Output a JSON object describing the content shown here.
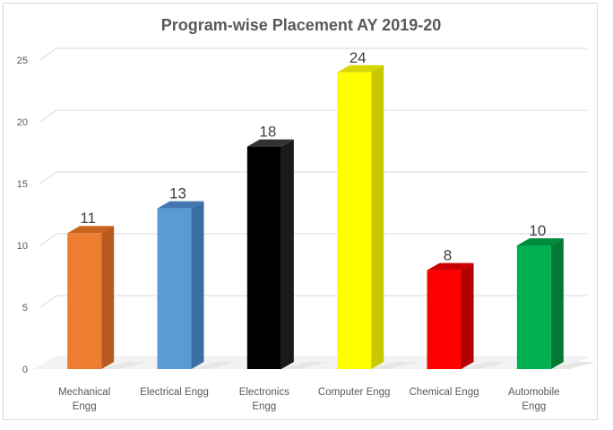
{
  "chart_data": {
    "type": "bar",
    "title": "Program-wise Placement AY 2019-20",
    "categories": [
      [
        "Mechanical",
        "Engg"
      ],
      [
        "Electrical Engg"
      ],
      [
        "Electronics",
        "Engg"
      ],
      [
        "Computer Engg"
      ],
      [
        "Chemical Engg"
      ],
      [
        "Automobile",
        "Engg"
      ]
    ],
    "values": [
      11,
      13,
      18,
      24,
      8,
      10
    ],
    "colors": [
      "#ed7d31",
      "#5b9bd5",
      "#000000",
      "#ffff00",
      "#ff0000",
      "#00b050"
    ],
    "side_colors": [
      "#b85a1e",
      "#3a6fa3",
      "#1a1a1a",
      "#c8c800",
      "#b30000",
      "#007a35"
    ],
    "top_colors": [
      "#c86420",
      "#4477b0",
      "#333333",
      "#d6d600",
      "#cc0000",
      "#008c3c"
    ],
    "yticks": [
      0,
      5,
      10,
      15,
      20,
      25
    ],
    "ylim": [
      0,
      27
    ],
    "grid": true,
    "style": "3d-column"
  }
}
